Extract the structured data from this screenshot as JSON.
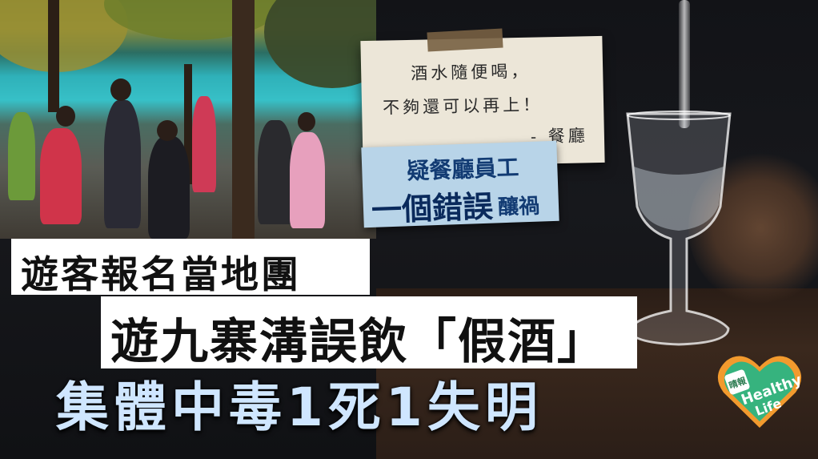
{
  "note": {
    "line1": "酒水隨便喝，",
    "line2": "不夠還可以再上！",
    "line3": "- 餐廳"
  },
  "tag": {
    "line1": "疑餐廳員工",
    "line2_main": "一個錯誤",
    "line2_small": "釀禍"
  },
  "headline": {
    "line1": "遊客報名當地團",
    "line2": "遊九寨溝誤飲「假酒」",
    "line3": "集體中毒1死1失明"
  },
  "logo": {
    "chinese": "晴報",
    "text1": "Healthy",
    "text2": "Life"
  }
}
